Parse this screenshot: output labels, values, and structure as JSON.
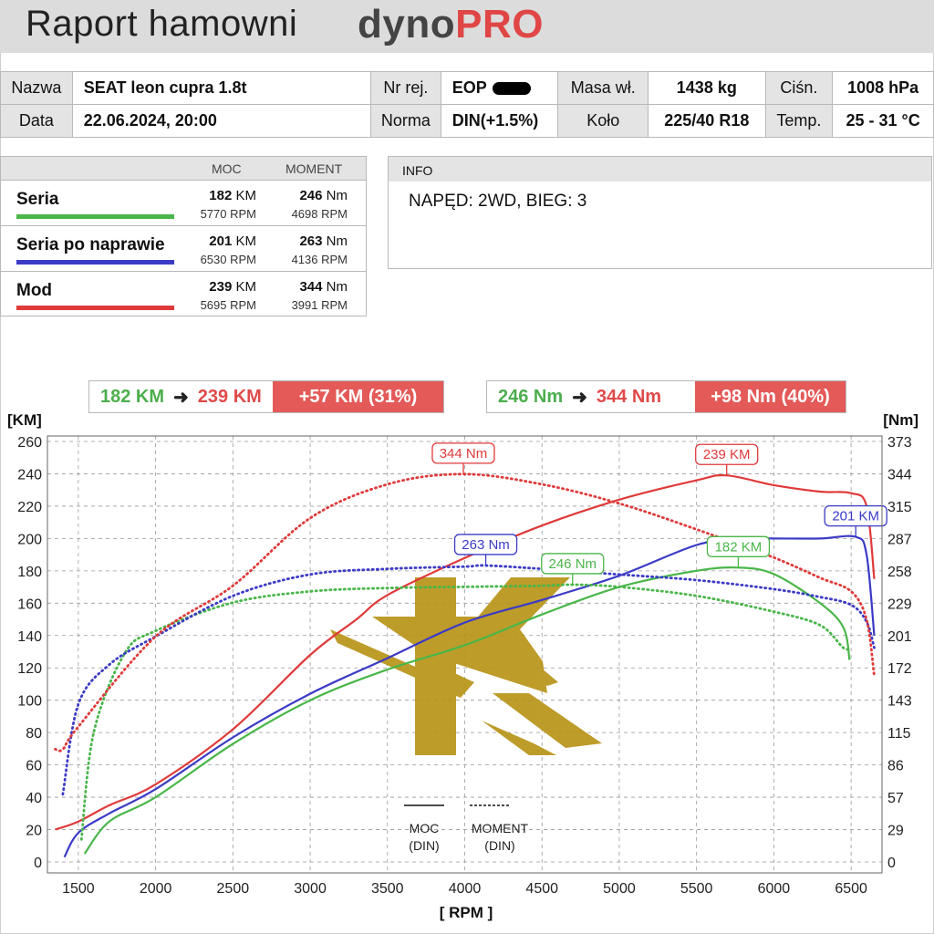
{
  "header": {
    "title": "Raport hamowni",
    "brand_a": "dyno",
    "brand_b": "PRO"
  },
  "info_table": {
    "nazwa_label": "Nazwa",
    "nazwa": "SEAT leon cupra 1.8t",
    "nr_rej_label": "Nr rej.",
    "nr_rej": "EOP",
    "masa_label": "Masa wł.",
    "masa": "1438 kg",
    "cisn_label": "Ciśn.",
    "cisn": "1008 hPa",
    "data_label": "Data",
    "data": "22.06.2024, 20:00",
    "norma_label": "Norma",
    "norma": "DIN(+1.5%)",
    "kolo_label": "Koło",
    "kolo": "225/40 R18",
    "temp_label": "Temp.",
    "temp": "25 - 31 °C"
  },
  "summary": {
    "moc_header": "MOC",
    "moment_header": "MOMENT",
    "rows": [
      {
        "name": "Seria",
        "color": "#49b649",
        "power": "182",
        "power_unit": "KM",
        "power_rpm": "5770 RPM",
        "torque": "246",
        "torque_unit": "Nm",
        "torque_rpm": "4698 RPM"
      },
      {
        "name": "Seria po naprawie",
        "color": "#3b3bc6",
        "power": "201",
        "power_unit": "KM",
        "power_rpm": "6530 RPM",
        "torque": "263",
        "torque_unit": "Nm",
        "torque_rpm": "4136 RPM"
      },
      {
        "name": "Mod",
        "color": "#e03a3a",
        "power": "239",
        "power_unit": "KM",
        "power_rpm": "5695 RPM",
        "torque": "344",
        "torque_unit": "Nm",
        "torque_rpm": "3991 RPM"
      }
    ]
  },
  "info_box": {
    "header": "INFO",
    "text": "NAPĘD: 2WD,  BIEG: 3"
  },
  "comparison": {
    "power": {
      "from": "182 KM",
      "to": "239 KM",
      "delta": "+57 KM  (31%)"
    },
    "torque": {
      "from": "246 Nm",
      "to": "344 Nm",
      "delta": "+98 Nm  (40%)"
    }
  },
  "legend": {
    "solid": "MOC\n(DIN)",
    "dotted": "MOMENT\n(DIN)"
  },
  "chart_data": {
    "type": "line",
    "xlabel": "[ RPM ]",
    "ylabel_left": "[KM]",
    "ylabel_right": "[Nm]",
    "xlim": [
      1300,
      6700
    ],
    "ylim_left": [
      0,
      260
    ],
    "ylim_right": [
      0,
      373
    ],
    "x_ticks": [
      1500,
      2000,
      2500,
      3000,
      3500,
      4000,
      4500,
      5000,
      5500,
      6000,
      6500
    ],
    "y_ticks_left": [
      0,
      20,
      40,
      60,
      80,
      100,
      120,
      140,
      160,
      180,
      200,
      220,
      240,
      260
    ],
    "y_ticks_right": [
      0,
      29,
      57,
      86,
      115,
      143,
      172,
      201,
      229,
      258,
      287,
      315,
      344,
      373
    ],
    "grid": true,
    "series": [
      {
        "name": "Seria",
        "kind": "power",
        "axis": "left",
        "color": "#49b649",
        "x": [
          1540,
          1700,
          2000,
          2500,
          3000,
          3500,
          4000,
          4500,
          5000,
          5500,
          5770,
          6000,
          6300,
          6450,
          6490
        ],
        "y": [
          5,
          25,
          40,
          73,
          100,
          119,
          134,
          153,
          170,
          180,
          182,
          178,
          160,
          145,
          125
        ]
      },
      {
        "name": "Seria po naprawie",
        "kind": "power",
        "axis": "left",
        "color": "#3b3bc6",
        "x": [
          1410,
          1500,
          1700,
          2000,
          2500,
          3000,
          3500,
          4000,
          4500,
          5000,
          5500,
          5800,
          6000,
          6300,
          6530,
          6600,
          6650
        ],
        "y": [
          3,
          18,
          30,
          45,
          77,
          104,
          126,
          148,
          162,
          177,
          196,
          200,
          200,
          200,
          201,
          190,
          140
        ]
      },
      {
        "name": "Mod",
        "kind": "power",
        "axis": "left",
        "color": "#e03a3a",
        "x": [
          1350,
          1500,
          1700,
          2000,
          2500,
          3000,
          3300,
          3500,
          4000,
          4500,
          5000,
          5500,
          5695,
          6000,
          6300,
          6500,
          6600,
          6650
        ],
        "y": [
          20,
          25,
          35,
          48,
          82,
          128,
          150,
          165,
          188,
          208,
          224,
          236,
          239,
          233,
          229,
          228,
          220,
          175
        ]
      },
      {
        "name": "Seria",
        "kind": "torque",
        "axis": "right",
        "color": "#49b649",
        "x": [
          1520,
          1600,
          1800,
          2000,
          2500,
          3000,
          3500,
          4000,
          4500,
          4698,
          5000,
          5500,
          6000,
          6300,
          6450,
          6500
        ],
        "y": [
          20,
          115,
          185,
          205,
          230,
          240,
          243,
          244,
          245,
          246,
          244,
          236,
          222,
          210,
          190,
          190
        ]
      },
      {
        "name": "Seria po naprawie",
        "kind": "torque",
        "axis": "right",
        "color": "#3b3bc6",
        "x": [
          1400,
          1500,
          1700,
          2000,
          2500,
          3000,
          3500,
          4000,
          4136,
          4500,
          5000,
          5500,
          6000,
          6300,
          6500,
          6600,
          6650
        ],
        "y": [
          60,
          140,
          175,
          200,
          236,
          255,
          260,
          262,
          263,
          260,
          255,
          250,
          242,
          235,
          228,
          213,
          190
        ]
      },
      {
        "name": "Mod",
        "kind": "torque",
        "axis": "right",
        "color": "#e03a3a",
        "x": [
          1350,
          1400,
          1500,
          2000,
          2500,
          3000,
          3500,
          3991,
          4500,
          5000,
          5500,
          6000,
          6300,
          6500,
          6600,
          6650
        ],
        "y": [
          100,
          100,
          120,
          200,
          245,
          305,
          335,
          344,
          335,
          318,
          295,
          270,
          252,
          240,
          215,
          165
        ]
      }
    ],
    "annotations": [
      {
        "text": "344 Nm",
        "color": "#e03a3a",
        "x": 3991,
        "axis": "right",
        "y": 344
      },
      {
        "text": "239 KM",
        "color": "#e03a3a",
        "x": 5695,
        "axis": "left",
        "y": 239
      },
      {
        "text": "201 KM",
        "color": "#3b3bc6",
        "x": 6530,
        "axis": "left",
        "y": 201
      },
      {
        "text": "263 Nm",
        "color": "#3b3bc6",
        "x": 4136,
        "axis": "right",
        "y": 263
      },
      {
        "text": "246 Nm",
        "color": "#49b649",
        "x": 4698,
        "axis": "right",
        "y": 246
      },
      {
        "text": "182 KM",
        "color": "#49b649",
        "x": 5770,
        "axis": "left",
        "y": 182
      }
    ]
  }
}
